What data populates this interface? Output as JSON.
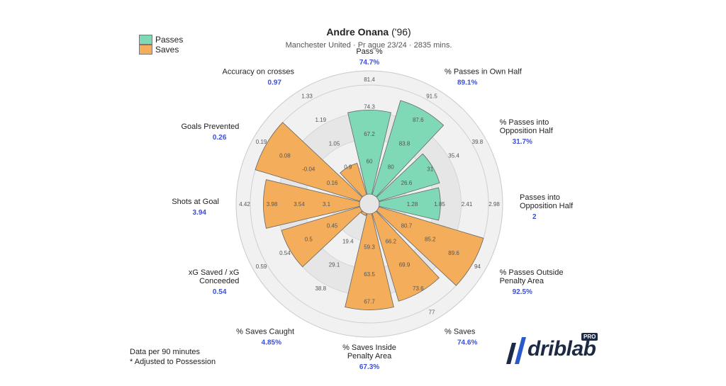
{
  "header": {
    "player_name": "Andre Onana",
    "player_year": "('96)",
    "subtitle": "Manchester United · Pr          ague 23/24 · 2835 mins."
  },
  "legend": {
    "items": [
      {
        "label": "Passes",
        "color": "#7fd8b6"
      },
      {
        "label": "Saves",
        "color": "#f4ad5a"
      }
    ]
  },
  "footer": {
    "line1": "Data per 90 minutes",
    "line2": "* Adjusted to Possession"
  },
  "brand": {
    "name": "driblab",
    "badge": "PRO"
  },
  "chart_data": {
    "type": "polar-bar",
    "colors": {
      "Passes": "#7fd8b6",
      "Saves": "#f4ad5a"
    },
    "categories": [
      {
        "label": "Pass %",
        "value": "74.7%",
        "group": "Passes",
        "percentile": 77,
        "ticks": [
          "60",
          "67.2",
          "74.3",
          "81.4"
        ]
      },
      {
        "label": "% Passes in Own Half",
        "value": "89.1%",
        "group": "Passes",
        "percentile": 90,
        "ticks": [
          "80",
          "83.8",
          "87.6",
          "91.5"
        ]
      },
      {
        "label": "% Passes into Opposition Half",
        "value": "31.7%",
        "group": "Passes",
        "percentile": 58,
        "ticks": [
          "26.6",
          "31",
          "35.4",
          "39.8"
        ]
      },
      {
        "label": "Passes into Opposition Half",
        "value": "2",
        "group": "Passes",
        "percentile": 56,
        "ticks": [
          "1.28",
          "1.85",
          "2.41",
          "2.98"
        ]
      },
      {
        "label": "% Passes Outside Penalty Area",
        "value": "92.5%",
        "group": "Saves",
        "percentile": 100,
        "ticks": [
          "80.7",
          "85.2",
          "89.6",
          "94"
        ]
      },
      {
        "label": "% Saves",
        "value": "74.6%",
        "group": "Saves",
        "percentile": 84,
        "ticks": [
          "66.2",
          "69.9",
          "73.6",
          "77"
        ]
      },
      {
        "label": "% Saves Inside Penalty Area",
        "value": "67.3%",
        "group": "Saves",
        "percentile": 88,
        "ticks": [
          "59.3",
          "63.5",
          "67.7"
        ]
      },
      {
        "label": "% Saves Caught",
        "value": "4.85%",
        "group": "Saves",
        "percentile": 2,
        "ticks": [
          "19.4",
          "29.1",
          "38.8"
        ]
      },
      {
        "label": "xG Saved / xG Conceeded",
        "value": "0.54",
        "group": "Saves",
        "percentile": 75,
        "ticks": [
          "0.45",
          "0.5",
          "0.54",
          "0.59"
        ]
      },
      {
        "label": "Shots at Goal",
        "value": "3.94",
        "group": "Saves",
        "percentile": 88,
        "ticks": [
          "3.1",
          "3.54",
          "3.98",
          "4.42"
        ]
      },
      {
        "label": "Goals Prevented",
        "value": "0.26",
        "group": "Saves",
        "percentile": 100,
        "ticks": [
          "0.16",
          "-0.04",
          "0.08",
          "0.19"
        ]
      },
      {
        "label": "Accuracy on crosses",
        "value": "0.97",
        "group": "Saves",
        "percentile": 30,
        "ticks": [
          "0.9",
          "1.05",
          "1.19",
          "1.33"
        ]
      }
    ]
  }
}
